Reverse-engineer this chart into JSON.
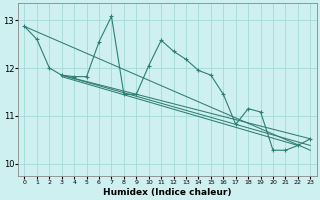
{
  "xlabel": "Humidex (Indice chaleur)",
  "bg_color": "#cff0f0",
  "line_color": "#2e7d72",
  "grid_color": "#aadddd",
  "xlim": [
    -0.5,
    23.5
  ],
  "ylim": [
    9.75,
    13.35
  ],
  "yticks": [
    10,
    11,
    12,
    13
  ],
  "xticks": [
    0,
    1,
    2,
    3,
    4,
    5,
    6,
    7,
    8,
    9,
    10,
    11,
    12,
    13,
    14,
    15,
    16,
    17,
    18,
    19,
    20,
    21,
    22,
    23
  ],
  "series1_x": [
    0,
    1,
    2,
    3,
    4,
    5,
    6,
    7,
    8,
    9,
    10,
    11,
    12,
    13,
    14,
    15,
    16,
    17,
    18,
    19,
    20,
    21,
    22,
    23
  ],
  "series1_y": [
    12.87,
    12.6,
    12.0,
    11.85,
    11.82,
    11.82,
    12.55,
    13.08,
    11.45,
    11.45,
    12.05,
    12.58,
    12.35,
    12.18,
    11.95,
    11.85,
    11.45,
    10.82,
    11.15,
    11.08,
    10.28,
    10.28,
    10.38,
    10.52
  ],
  "trend1_x": [
    0,
    23
  ],
  "trend1_y": [
    12.87,
    10.28
  ],
  "trend2_x": [
    3,
    23
  ],
  "trend2_y": [
    11.85,
    10.52
  ],
  "trend3_x": [
    3,
    23
  ],
  "trend3_y": [
    11.85,
    10.38
  ],
  "trend4_x": [
    3,
    22
  ],
  "trend4_y": [
    11.82,
    10.38
  ]
}
